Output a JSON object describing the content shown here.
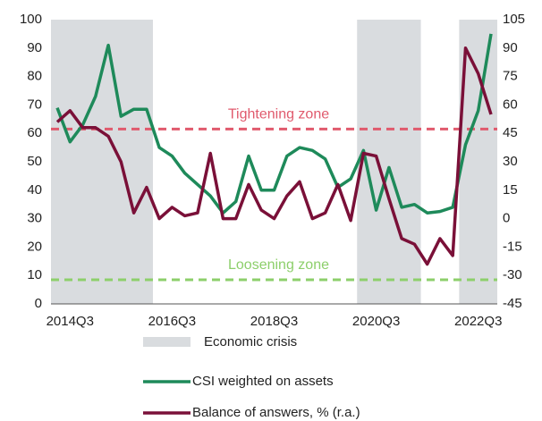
{
  "chart_data": {
    "type": "line",
    "categories": [
      null,
      "2014Q3",
      null,
      null,
      null,
      null,
      null,
      null,
      null,
      "2016Q3",
      null,
      null,
      null,
      null,
      null,
      null,
      null,
      "2018Q3",
      null,
      null,
      null,
      null,
      null,
      null,
      null,
      "2020Q3",
      null,
      null,
      null,
      null,
      null,
      null,
      null,
      "2022Q3",
      null
    ],
    "series": [
      {
        "name": "CSI weighted on assets",
        "color": "#1e8a5a",
        "values": [
          69,
          57,
          63,
          73,
          91,
          66,
          68.5,
          68.5,
          55,
          52,
          46,
          42,
          38,
          32,
          36,
          52,
          40,
          40,
          52,
          55,
          54,
          51,
          41,
          44,
          54,
          33,
          48,
          34,
          35,
          32,
          32.5,
          34,
          56,
          68,
          95
        ]
      },
      {
        "name": "Balance of answers, % (r.a.)",
        "color": "#7a1038",
        "axis": "y2",
        "values": [
          51,
          57,
          48,
          48,
          43.5,
          30,
          3,
          16.5,
          0,
          6,
          1.5,
          3,
          34.5,
          0,
          0,
          18,
          4.5,
          0,
          12,
          19.5,
          0,
          3,
          18,
          -1,
          34.5,
          33,
          10.5,
          -10.5,
          -13.5,
          -24,
          -10.5,
          -19.5,
          90,
          76.5,
          55
        ]
      }
    ],
    "bands": {
      "name": "Economic crisis",
      "color": "#d9dcdf",
      "ranges": [
        [
          0,
          7
        ],
        [
          24,
          28
        ],
        [
          32,
          34
        ]
      ]
    },
    "thresholds": [
      {
        "label": "Tightening zone",
        "value": 61.5,
        "color": "#e05a6d"
      },
      {
        "label": "Loosening zone",
        "value": 8.5,
        "color": "#8dcf6b"
      }
    ],
    "ylim": [
      0,
      100
    ],
    "yticks": [
      0,
      10,
      20,
      30,
      40,
      50,
      60,
      70,
      80,
      90,
      100
    ],
    "y2lim": [
      -45,
      105
    ],
    "y2ticks": [
      -45,
      -30,
      -15,
      0,
      15,
      30,
      45,
      60,
      75,
      90,
      105
    ]
  }
}
